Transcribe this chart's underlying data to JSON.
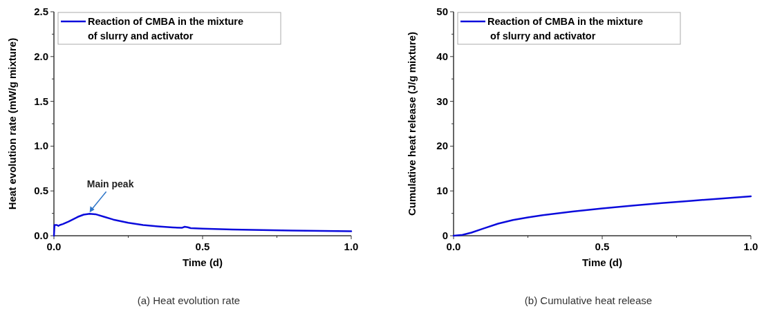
{
  "chart_data": [
    {
      "type": "line",
      "xlabel": "Time (d)",
      "ylabel": "Heat evolution rate (mW/g mixture)",
      "xlim": [
        0,
        1
      ],
      "xticks": [
        {
          "value": 0,
          "label": "0.0"
        },
        {
          "value": 0.25,
          "label": null
        },
        0.5,
        {
          "value": 0.75,
          "label": null
        },
        {
          "value": 1,
          "label": "1.0"
        }
      ],
      "ylim": [
        0,
        2.5
      ],
      "yticks": [
        {
          "value": 0,
          "label": "0.0"
        },
        {
          "value": 0.25,
          "label": null
        },
        0.5,
        {
          "value": 0.75,
          "label": null
        },
        {
          "value": 1,
          "label": "1.0"
        },
        {
          "value": 1.25,
          "label": null
        },
        1.5,
        {
          "value": 1.75,
          "label": null
        },
        {
          "value": 2,
          "label": "2.0"
        },
        {
          "value": 2.25,
          "label": null
        },
        2.5
      ],
      "legend": "top left",
      "grid": false,
      "line_style": "solid",
      "series": [
        {
          "name": "Reaction of CMBA in the mixture\nof slurry and activator",
          "color": "#0b0bdc",
          "x": [
            0,
            0.002,
            0.01,
            0.015,
            0.02,
            0.03,
            0.05,
            0.08,
            0.1,
            0.12,
            0.14,
            0.17,
            0.2,
            0.25,
            0.3,
            0.35,
            0.4,
            0.43,
            0.44,
            0.45,
            0.46,
            0.5,
            0.6,
            0.7,
            0.8,
            0.9,
            1.0
          ],
          "values": [
            0,
            0.12,
            0.12,
            0.11,
            0.12,
            0.13,
            0.16,
            0.21,
            0.235,
            0.245,
            0.24,
            0.21,
            0.18,
            0.145,
            0.12,
            0.105,
            0.093,
            0.088,
            0.1,
            0.095,
            0.085,
            0.08,
            0.07,
            0.063,
            0.058,
            0.054,
            0.05
          ]
        }
      ],
      "annotations": [
        {
          "text": "Main peak",
          "x": 0.12,
          "y": 0.245
        },
        "(a) Heat evolution rate"
      ]
    },
    {
      "type": "line",
      "xlabel": "Time (d)",
      "ylabel": "Cumulative heat release (J/g mixture)",
      "xlim": [
        0,
        1
      ],
      "xticks": [
        {
          "value": 0,
          "label": "0.0"
        },
        {
          "value": 0.25,
          "label": null
        },
        0.5,
        {
          "value": 0.75,
          "label": null
        },
        {
          "value": 1,
          "label": "1.0"
        }
      ],
      "ylim": [
        0,
        50
      ],
      "yticks": [
        0,
        {
          "value": 5,
          "label": null
        },
        10,
        {
          "value": 15,
          "label": null
        },
        20,
        {
          "value": 25,
          "label": null
        },
        30,
        {
          "value": 35,
          "label": null
        },
        40,
        {
          "value": 45,
          "label": null
        },
        50
      ],
      "legend": "top left",
      "grid": false,
      "line_style": "solid",
      "series": [
        {
          "name": "Reaction of CMBA in the mixture\n of slurry and activator",
          "color": "#0b0bdc",
          "x": [
            0,
            0.03,
            0.06,
            0.1,
            0.15,
            0.2,
            0.25,
            0.3,
            0.4,
            0.5,
            0.6,
            0.7,
            0.8,
            0.9,
            1.0
          ],
          "values": [
            0,
            0.2,
            0.7,
            1.6,
            2.7,
            3.5,
            4.1,
            4.6,
            5.4,
            6.1,
            6.7,
            7.3,
            7.8,
            8.3,
            8.8
          ]
        }
      ],
      "annotations": [
        "(b) Cumulative heat release"
      ]
    }
  ]
}
